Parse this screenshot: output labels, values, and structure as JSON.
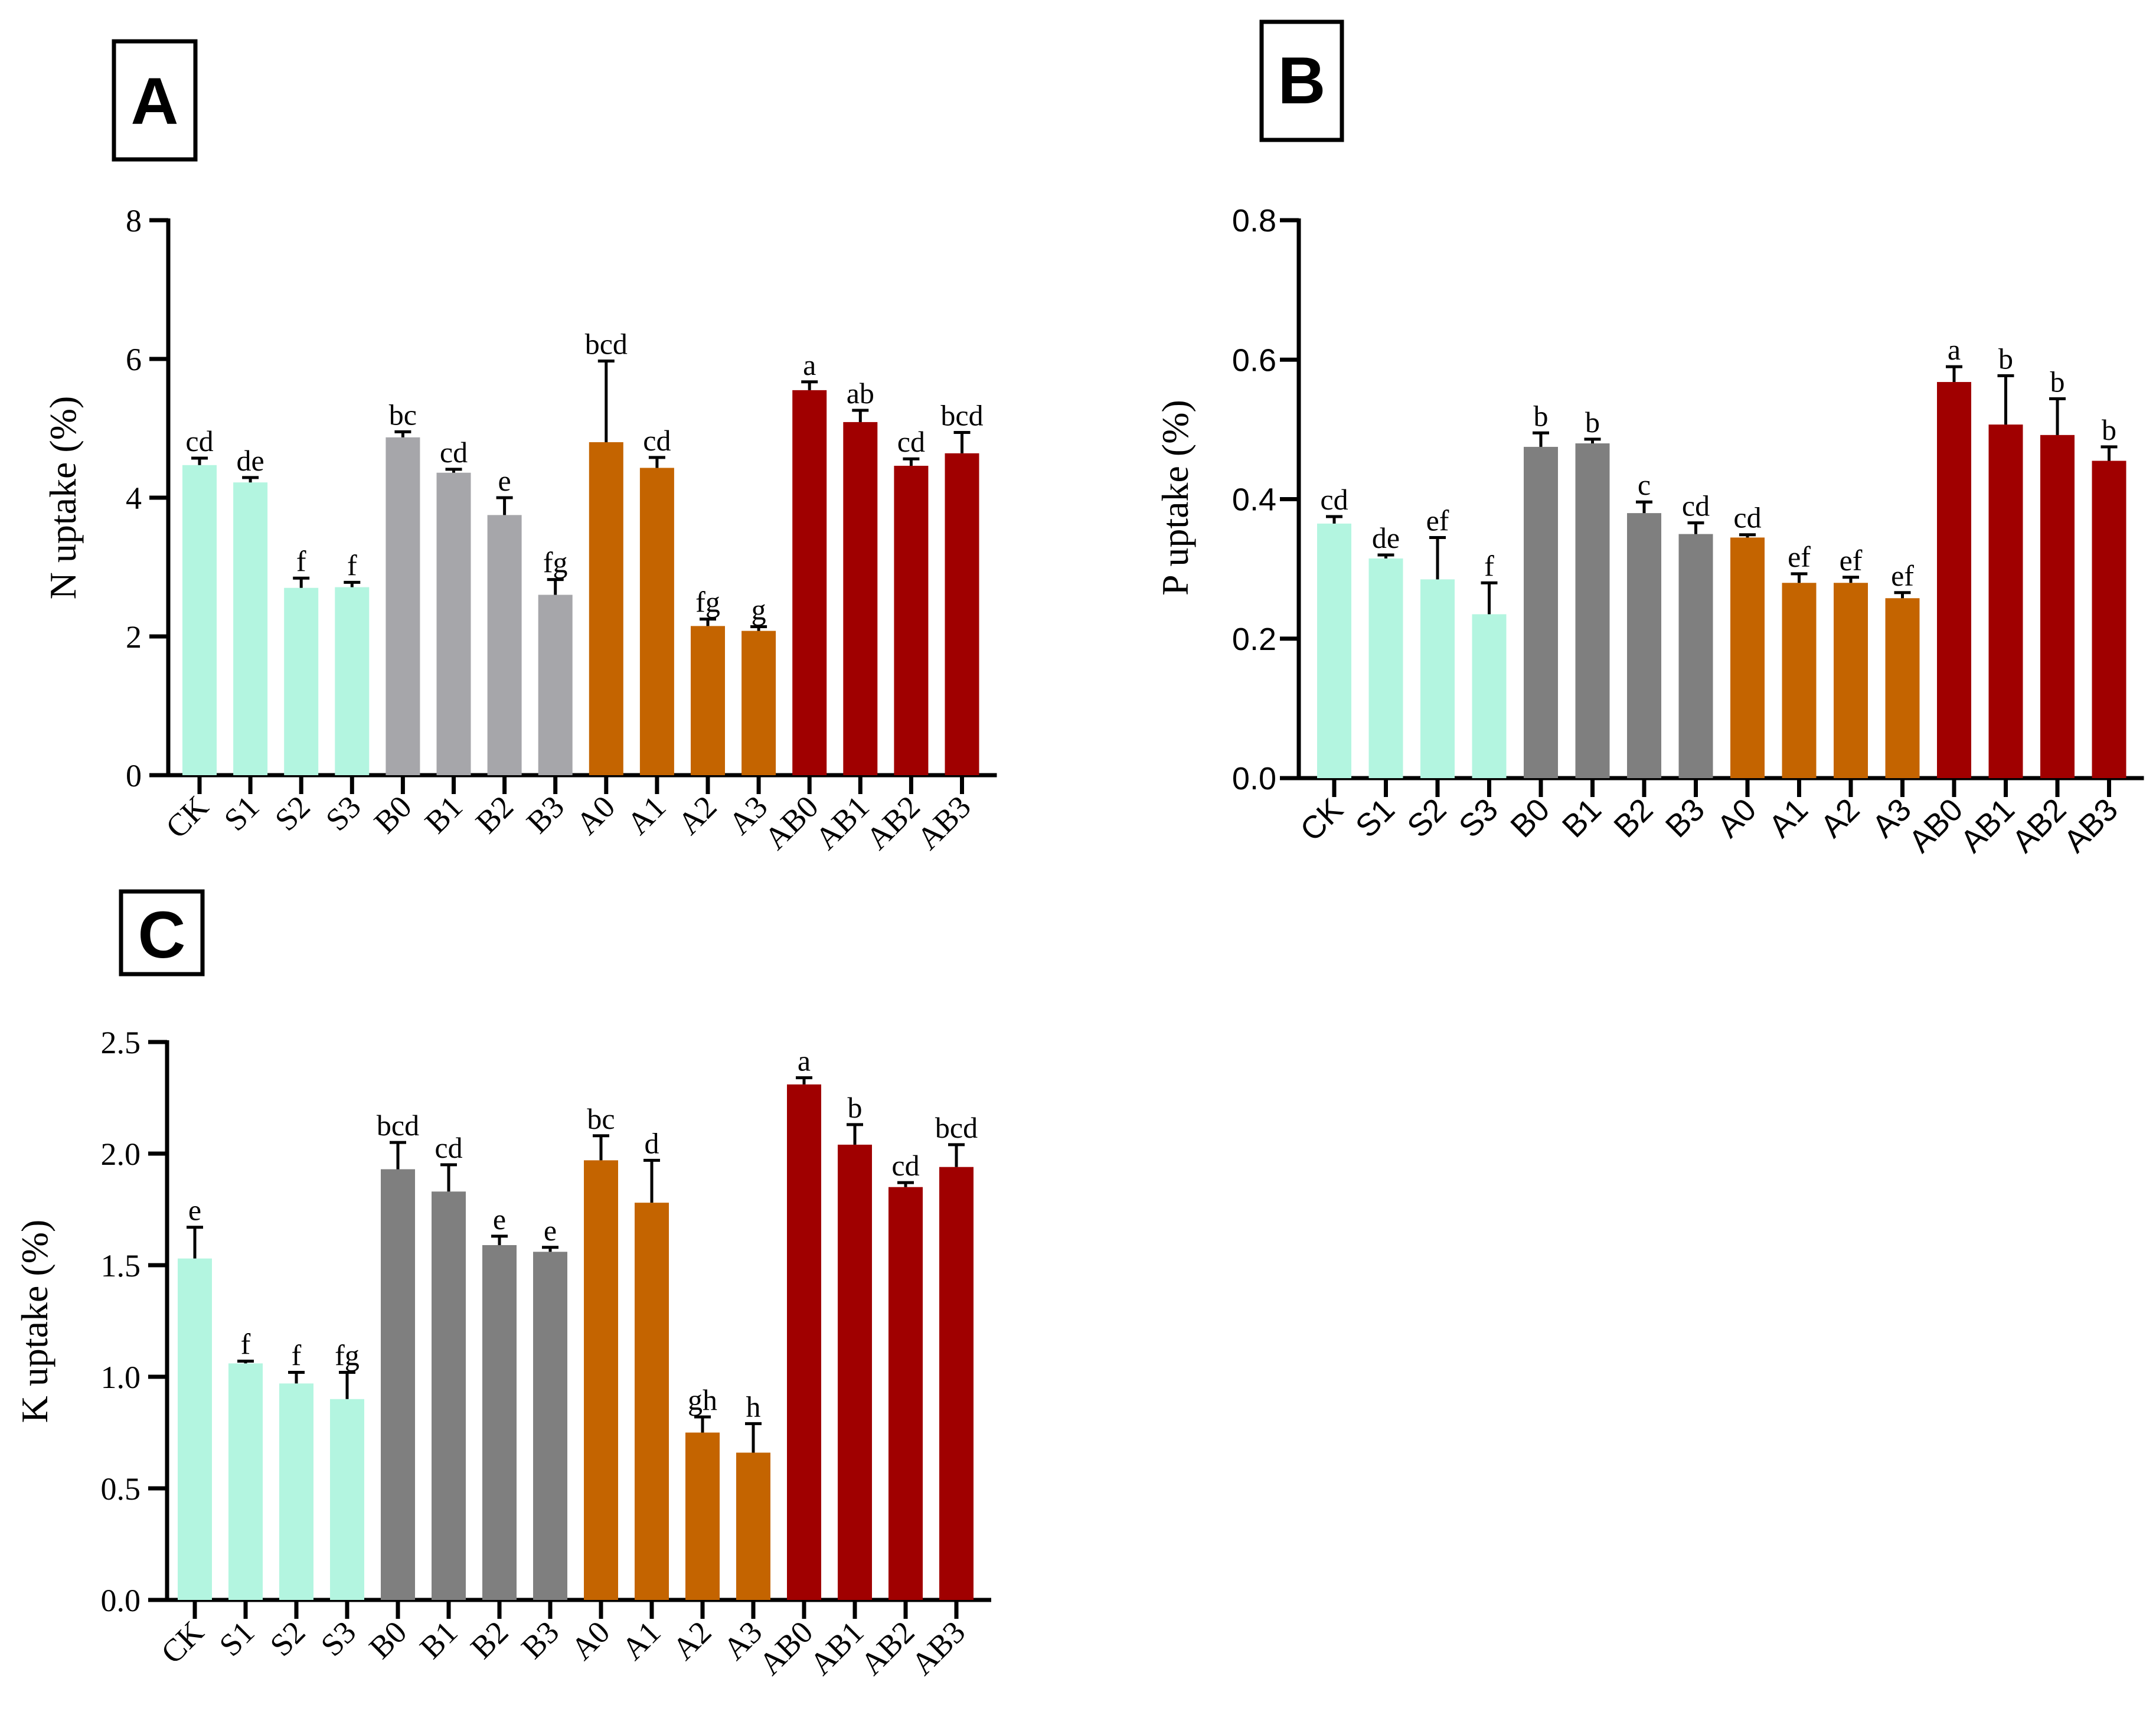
{
  "colors": {
    "S": "#b3f5e0",
    "B_light": "#a6a6aa",
    "B_dark": "#7f7f7f",
    "A": "#c46400",
    "AB": "#a00000"
  },
  "chart_data": [
    {
      "panel": "A",
      "type": "bar",
      "ylabel": "N uptake (%)",
      "ylim": [
        0,
        8
      ],
      "yticks": [
        "0",
        "2",
        "4",
        "6",
        "8"
      ],
      "categories": [
        "CK",
        "S1",
        "S2",
        "S3",
        "B0",
        "B1",
        "B2",
        "B3",
        "A0",
        "A1",
        "A2",
        "A3",
        "AB0",
        "AB1",
        "AB2",
        "AB3"
      ],
      "values": [
        4.47,
        4.22,
        2.7,
        2.71,
        4.87,
        4.36,
        3.75,
        2.6,
        4.8,
        4.43,
        2.15,
        2.08,
        5.55,
        5.09,
        4.46,
        4.64
      ],
      "errors": [
        0.1,
        0.07,
        0.14,
        0.07,
        0.08,
        0.05,
        0.25,
        0.22,
        1.17,
        0.15,
        0.1,
        0.06,
        0.12,
        0.17,
        0.1,
        0.3
      ],
      "letters": [
        "cd",
        "de",
        "f",
        "f",
        "bc",
        "cd",
        "e",
        "fg",
        "bcd",
        "cd",
        "fg",
        "g",
        "a",
        "ab",
        "cd",
        "bcd"
      ]
    },
    {
      "panel": "B",
      "type": "bar",
      "ylabel": "P uptake (%)",
      "ylim": [
        0,
        0.8
      ],
      "yticks": [
        "0.0",
        "0.2",
        "0.4",
        "0.6",
        "0.8"
      ],
      "categories": [
        "CK",
        "S1",
        "S2",
        "S3",
        "B0",
        "B1",
        "B2",
        "B3",
        "A0",
        "A1",
        "A2",
        "A3",
        "AB0",
        "AB1",
        "AB2",
        "AB3"
      ],
      "values": [
        0.365,
        0.315,
        0.285,
        0.235,
        0.475,
        0.48,
        0.38,
        0.35,
        0.345,
        0.28,
        0.28,
        0.258,
        0.568,
        0.507,
        0.492,
        0.455
      ],
      "errors": [
        0.01,
        0.005,
        0.06,
        0.045,
        0.02,
        0.006,
        0.016,
        0.016,
        0.004,
        0.013,
        0.008,
        0.008,
        0.022,
        0.07,
        0.052,
        0.02
      ],
      "letters": [
        "cd",
        "de",
        "ef",
        "f",
        "b",
        "b",
        "c",
        "cd",
        "cd",
        "ef",
        "ef",
        "ef",
        "a",
        "b",
        "b",
        "b"
      ]
    },
    {
      "panel": "C",
      "type": "bar",
      "ylabel": "K uptake (%)",
      "ylim": [
        0,
        2.5
      ],
      "yticks": [
        "0.0",
        "0.5",
        "1.0",
        "1.5",
        "2.0",
        "2.5"
      ],
      "categories": [
        "CK",
        "S1",
        "S2",
        "S3",
        "B0",
        "B1",
        "B2",
        "B3",
        "A0",
        "A1",
        "A2",
        "A3",
        "AB0",
        "AB1",
        "AB2",
        "AB3"
      ],
      "values": [
        1.53,
        1.06,
        0.97,
        0.9,
        1.93,
        1.83,
        1.59,
        1.56,
        1.97,
        1.78,
        0.75,
        0.66,
        2.31,
        2.04,
        1.85,
        1.94
      ],
      "errors": [
        0.14,
        0.01,
        0.05,
        0.12,
        0.12,
        0.12,
        0.04,
        0.02,
        0.11,
        0.19,
        0.07,
        0.13,
        0.03,
        0.09,
        0.02,
        0.1
      ],
      "letters": [
        "e",
        "f",
        "f",
        "fg",
        "bcd",
        "cd",
        "e",
        "e",
        "bc",
        "d",
        "gh",
        "h",
        "a",
        "b",
        "cd",
        "bcd"
      ]
    }
  ]
}
